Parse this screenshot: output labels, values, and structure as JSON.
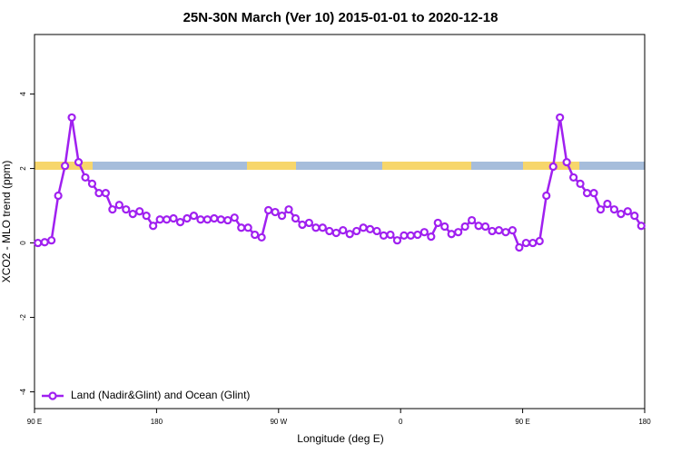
{
  "chart_data": {
    "type": "line",
    "title": "25N-30N March (Ver 10)   2015-01-01 to 2020-12-18",
    "x_label": "Longitude (deg E)",
    "y_label": "XCO2 - MLO trend (ppm)",
    "x": [
      92.5,
      97.5,
      102.5,
      107.5,
      112.5,
      117.5,
      122.5,
      127.5,
      132.5,
      137.5,
      142.5,
      147.5,
      152.5,
      157.5,
      162.5,
      167.5,
      172.5,
      177.5,
      182.5,
      187.5,
      192.5,
      197.5,
      202.5,
      207.5,
      212.5,
      217.5,
      222.5,
      227.5,
      232.5,
      237.5,
      242.5,
      247.5,
      252.5,
      257.5,
      262.5,
      267.5,
      272.5,
      277.5,
      282.5,
      287.5,
      292.5,
      297.5,
      302.5,
      307.5,
      312.5,
      317.5,
      322.5,
      327.5,
      332.5,
      337.5,
      342.5,
      347.5,
      352.5,
      357.5,
      362.5,
      367.5,
      372.5,
      377.5,
      382.5,
      387.5,
      392.5,
      397.5,
      402.5,
      407.5,
      412.5,
      417.5,
      422.5,
      427.5,
      432.5,
      437.5,
      442.5,
      447.5,
      452.5,
      457.5,
      462.5,
      467.5,
      472.5,
      477.5,
      482.5,
      487.5,
      492.5,
      497.5,
      502.5,
      507.5,
      512.5,
      517.5,
      522.5,
      527.5,
      532.5,
      537.5
    ],
    "series": [
      {
        "name": "Land (Nadir&Glint) and Ocean (Glint)",
        "color": "#a020f0",
        "values": [
          0.0,
          0.02,
          0.07,
          1.27,
          2.07,
          3.37,
          2.17,
          1.76,
          1.59,
          1.34,
          1.34,
          0.9,
          1.02,
          0.9,
          0.78,
          0.85,
          0.73,
          0.46,
          0.63,
          0.63,
          0.66,
          0.56,
          0.66,
          0.73,
          0.63,
          0.63,
          0.66,
          0.63,
          0.61,
          0.68,
          0.41,
          0.41,
          0.22,
          0.15,
          0.88,
          0.83,
          0.73,
          0.9,
          0.66,
          0.49,
          0.54,
          0.41,
          0.41,
          0.32,
          0.27,
          0.34,
          0.24,
          0.32,
          0.41,
          0.37,
          0.32,
          0.2,
          0.22,
          0.07,
          0.2,
          0.2,
          0.22,
          0.29,
          0.17,
          0.54,
          0.44,
          0.24,
          0.29,
          0.44,
          0.61,
          0.46,
          0.44,
          0.32,
          0.34,
          0.29,
          0.34,
          -0.12,
          0.0,
          0.0,
          0.05,
          1.27,
          2.05,
          3.37,
          2.17,
          1.76,
          1.59,
          1.34,
          1.34,
          0.9,
          1.05,
          0.9,
          0.78,
          0.85,
          0.73,
          0.46
        ]
      }
    ],
    "xlim": [
      90,
      540
    ],
    "xticks": [
      {
        "value": 90,
        "label": "90 E"
      },
      180,
      {
        "value": 270,
        "label": "90 W"
      },
      {
        "value": 360,
        "label": "0"
      },
      {
        "value": 450,
        "label": "90 E"
      },
      {
        "value": 540,
        "label": "180"
      }
    ],
    "ylim": [
      -4.45,
      5.6
    ],
    "yticks": [
      -4,
      -2,
      0,
      2,
      4
    ],
    "legend": "bottom-left"
  }
}
